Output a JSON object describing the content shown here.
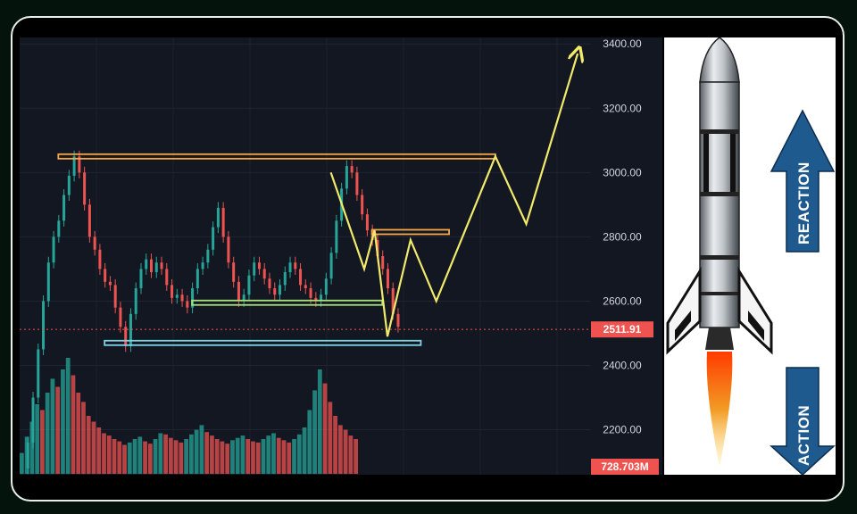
{
  "chart_data": {
    "type": "candlestick",
    "title": "",
    "price_axis": {
      "ticks": [
        3400,
        3200,
        3000,
        2800,
        2600,
        2400,
        2200
      ],
      "tick_labels": [
        "3400.00",
        "3200.00",
        "3000.00",
        "2800.00",
        "2600.00",
        "2400.00",
        "2200.00"
      ],
      "range": [
        2060,
        3420
      ]
    },
    "last_price": {
      "value": 2511.91,
      "label": "2511.91"
    },
    "last_volume": {
      "label": "728.703M"
    },
    "price_path": [
      [
        0,
        2080
      ],
      [
        2,
        2160
      ],
      [
        4,
        2300
      ],
      [
        6,
        2450
      ],
      [
        8,
        2600
      ],
      [
        10,
        2720
      ],
      [
        12,
        2800
      ],
      [
        14,
        2850
      ],
      [
        16,
        2930
      ],
      [
        18,
        2990
      ],
      [
        20,
        3050
      ],
      [
        22,
        3000
      ],
      [
        24,
        2900
      ],
      [
        26,
        2800
      ],
      [
        28,
        2760
      ],
      [
        30,
        2700
      ],
      [
        32,
        2660
      ],
      [
        34,
        2650
      ],
      [
        36,
        2580
      ],
      [
        38,
        2520
      ],
      [
        40,
        2460
      ],
      [
        42,
        2560
      ],
      [
        44,
        2640
      ],
      [
        46,
        2700
      ],
      [
        48,
        2730
      ],
      [
        50,
        2690
      ],
      [
        52,
        2720
      ],
      [
        54,
        2700
      ],
      [
        56,
        2650
      ],
      [
        58,
        2610
      ],
      [
        60,
        2620
      ],
      [
        62,
        2600
      ],
      [
        64,
        2580
      ],
      [
        66,
        2640
      ],
      [
        68,
        2700
      ],
      [
        70,
        2720
      ],
      [
        72,
        2760
      ],
      [
        74,
        2830
      ],
      [
        76,
        2890
      ],
      [
        78,
        2800
      ],
      [
        80,
        2720
      ],
      [
        82,
        2660
      ],
      [
        84,
        2600
      ],
      [
        86,
        2620
      ],
      [
        88,
        2680
      ],
      [
        90,
        2720
      ],
      [
        92,
        2700
      ],
      [
        94,
        2670
      ],
      [
        96,
        2640
      ],
      [
        98,
        2620
      ],
      [
        100,
        2650
      ],
      [
        102,
        2690
      ],
      [
        104,
        2720
      ],
      [
        106,
        2700
      ],
      [
        108,
        2650
      ],
      [
        110,
        2640
      ],
      [
        112,
        2610
      ],
      [
        114,
        2600
      ],
      [
        116,
        2620
      ],
      [
        118,
        2670
      ],
      [
        120,
        2750
      ],
      [
        122,
        2850
      ],
      [
        124,
        2950
      ],
      [
        126,
        3020
      ],
      [
        128,
        3000
      ],
      [
        130,
        2930
      ],
      [
        132,
        2870
      ],
      [
        134,
        2820
      ],
      [
        136,
        2790
      ],
      [
        138,
        2740
      ],
      [
        140,
        2700
      ],
      [
        142,
        2640
      ],
      [
        144,
        2560
      ],
      [
        146,
        2520
      ]
    ],
    "volume_levels": [
      0.18,
      0.32,
      0.45,
      0.6,
      0.55,
      0.7,
      0.82,
      0.75,
      0.9,
      1.0,
      0.85,
      0.7,
      0.62,
      0.5,
      0.45,
      0.4,
      0.35,
      0.33,
      0.3,
      0.28,
      0.25,
      0.27,
      0.3,
      0.32,
      0.28,
      0.26,
      0.3,
      0.35,
      0.34,
      0.31,
      0.29,
      0.27,
      0.3,
      0.34,
      0.38,
      0.42,
      0.36,
      0.33,
      0.3,
      0.28,
      0.26,
      0.29,
      0.31,
      0.33,
      0.3,
      0.28,
      0.27,
      0.3,
      0.33,
      0.35,
      0.31,
      0.29,
      0.27,
      0.3,
      0.34,
      0.4,
      0.55,
      0.72,
      0.9,
      0.78,
      0.62,
      0.5,
      0.42,
      0.38,
      0.33,
      0.3
    ],
    "levels": [
      {
        "name": "resistance-top",
        "price": 3050,
        "color": "#f5a74a",
        "from": 14,
        "to": 184
      },
      {
        "name": "resistance-mid",
        "price": 2815,
        "color": "#f5a74a",
        "from": 136,
        "to": 166
      },
      {
        "name": "support-green",
        "price": 2595,
        "color": "#a8e07a",
        "from": 66,
        "to": 140
      },
      {
        "name": "support-blue",
        "price": 2470,
        "color": "#7fd4e6",
        "from": 32,
        "to": 155
      }
    ],
    "projection": [
      [
        120,
        3000
      ],
      [
        133,
        2700
      ],
      [
        137,
        2820
      ],
      [
        142,
        2490
      ],
      [
        151,
        2790
      ],
      [
        161,
        2600
      ],
      [
        184,
        3050
      ],
      [
        196,
        2840
      ],
      [
        216,
        3370
      ]
    ],
    "projection_color": "#f2ea6b",
    "candle_colors": {
      "up": "#26a69a",
      "down": "#ef5350"
    },
    "grid": true
  },
  "rocket": {
    "reaction_label": "REACTION",
    "action_label": "ACTION",
    "arrow_color": "#1f5a8f"
  }
}
